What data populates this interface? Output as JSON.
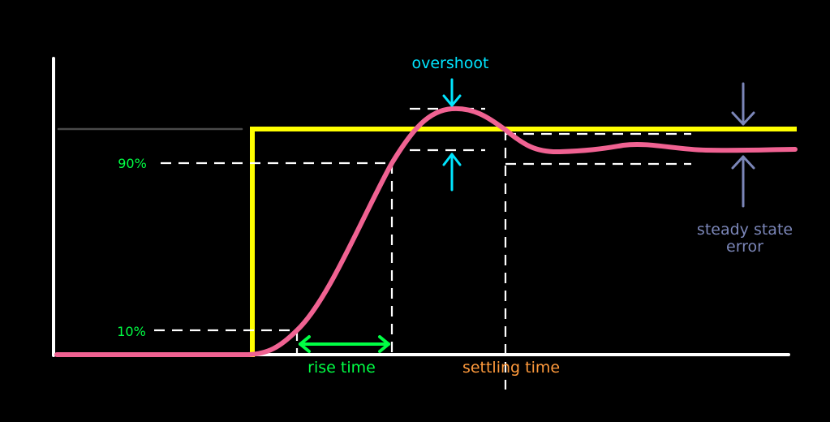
{
  "labels": {
    "overshoot": "overshoot",
    "ninety_percent": "90%",
    "ten_percent": "10%",
    "rise_time": "rise time",
    "settling_time": "settling time",
    "steady_state_line1": "steady state",
    "steady_state_line2": "error"
  },
  "colors": {
    "background": "#000000",
    "axes": "#ffffff",
    "setpoint_guide": "#4a4a4a",
    "step_input": "#ffff00",
    "response": "#f06292",
    "percent_labels": "#00ff44",
    "rise_time": "#00ff44",
    "overshoot": "#00e5ff",
    "settling_time": "#ff9a3c",
    "steady_state_error": "#7b86b8",
    "dashed_guides": "#ffffff"
  }
}
